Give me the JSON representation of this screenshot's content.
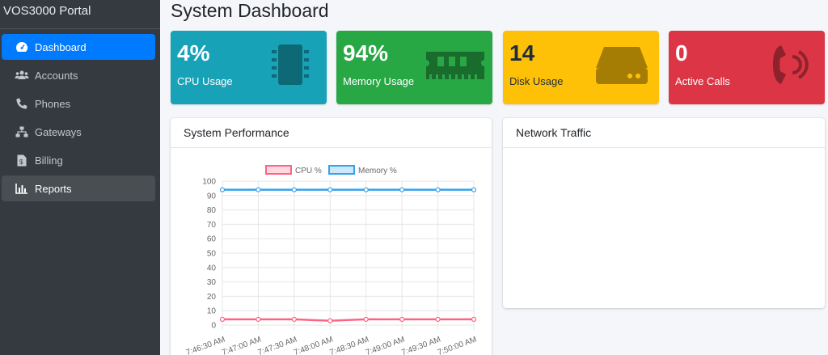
{
  "sidebar": {
    "brand": "VOS3000 Portal",
    "items": [
      {
        "label": "Dashboard",
        "icon": "tachometer-icon"
      },
      {
        "label": "Accounts",
        "icon": "users-icon"
      },
      {
        "label": "Phones",
        "icon": "phone-icon"
      },
      {
        "label": "Gateways",
        "icon": "sitemap-icon"
      },
      {
        "label": "Billing",
        "icon": "invoice-icon"
      },
      {
        "label": "Reports",
        "icon": "bar-chart-icon"
      }
    ]
  },
  "page": {
    "title": "System Dashboard"
  },
  "stats": [
    {
      "value": "4%",
      "label": "CPU Usage",
      "icon": "microchip-icon",
      "color": "#17a2b8"
    },
    {
      "value": "94%",
      "label": "Memory Usage",
      "icon": "memory-icon",
      "color": "#28a745"
    },
    {
      "value": "14",
      "label": "Disk Usage",
      "icon": "hdd-icon",
      "color": "#ffc107"
    },
    {
      "value": "0",
      "label": "Active Calls",
      "icon": "phone-volume-icon",
      "color": "#dc3545"
    }
  ],
  "cards": {
    "performance_title": "System Performance",
    "network_title": "Network Traffic"
  },
  "chart_data": {
    "type": "line",
    "x": [
      "7:46:30 AM",
      "7:47:00 AM",
      "7:47:30 AM",
      "7:48:00 AM",
      "7:48:30 AM",
      "7:49:00 AM",
      "7:49:30 AM",
      "7:50:00 AM"
    ],
    "series": [
      {
        "name": "CPU %",
        "values": [
          4,
          4,
          4,
          3,
          4,
          4,
          4,
          4
        ],
        "color": "#ff6384"
      },
      {
        "name": "Memory %",
        "values": [
          94,
          94,
          94,
          94,
          94,
          94,
          94,
          94
        ],
        "color": "#36a2eb"
      }
    ],
    "ylim": [
      0,
      100
    ],
    "yticks": [
      "0",
      "10",
      "20",
      "30",
      "40",
      "50",
      "60",
      "70",
      "80",
      "90",
      "100"
    ],
    "grid": true,
    "legend": "top"
  }
}
